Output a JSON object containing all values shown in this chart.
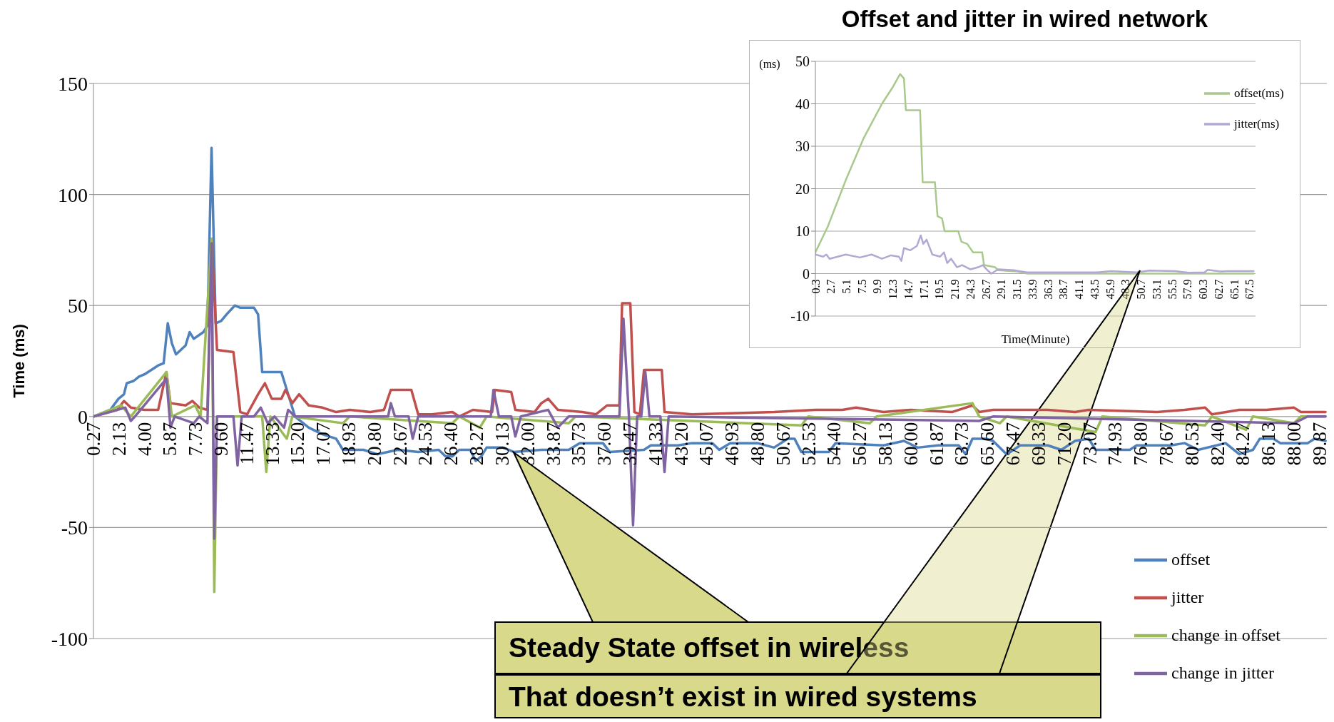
{
  "chart_data": [
    {
      "type": "line",
      "ylabel": "Time (ms)",
      "ylim": [
        -100,
        150
      ],
      "yticks": [
        -100,
        -50,
        0,
        50,
        100,
        150
      ],
      "xlim": [
        0.27,
        90.4
      ],
      "xticks": [
        0.27,
        2.13,
        {
          "value": 4,
          "label": "4.00"
        },
        5.87,
        7.73,
        {
          "value": 9.6,
          "label": "9.60"
        },
        11.47,
        13.33,
        {
          "value": 15.2,
          "label": "15.20"
        },
        17.07,
        18.93,
        {
          "value": 20.8,
          "label": "20.80"
        },
        22.67,
        24.53,
        {
          "value": 26.4,
          "label": "26.40"
        },
        28.27,
        30.13,
        {
          "value": 32,
          "label": "32.00"
        },
        33.87,
        35.73,
        {
          "value": 37.6,
          "label": "37.60"
        },
        39.47,
        41.33,
        {
          "value": 43.2,
          "label": "43.20"
        },
        45.07,
        46.93,
        {
          "value": 48.8,
          "label": "48.80"
        },
        50.67,
        52.53,
        {
          "value": 54.4,
          "label": "54.40"
        },
        56.27,
        58.13,
        {
          "value": 60,
          "label": "60.00"
        },
        61.87,
        63.73,
        {
          "value": 65.6,
          "label": "65.60"
        },
        67.47,
        69.33,
        {
          "value": 71.2,
          "label": "71.20"
        },
        73.07,
        74.93,
        {
          "value": 76.8,
          "label": "76.80"
        },
        78.67,
        80.53,
        {
          "value": 82.4,
          "label": "82.40"
        },
        84.27,
        86.13,
        {
          "value": 88,
          "label": "88.00"
        },
        89.87
      ],
      "grid": "y",
      "legend": "bottom right",
      "annotations": [
        "Steady State offset in wireless",
        "That doesn’t exist in wired systems"
      ],
      "series": [
        {
          "name": "offset",
          "color": "#4f81bd",
          "x": [
            0.27,
            1.5,
            2.1,
            2.5,
            2.7,
            3.2,
            3.6,
            4.0,
            4.5,
            5.0,
            5.4,
            5.7,
            6.0,
            6.3,
            7.0,
            7.3,
            7.6,
            8.3,
            8.6,
            8.9,
            9.2,
            9.6,
            10.0,
            10.6,
            11.0,
            12.0,
            12.3,
            12.6,
            14.0,
            14.5,
            15.0,
            16.0,
            17.0,
            18.0,
            18.5,
            20.0,
            21.0,
            22.5,
            24.0,
            25.5,
            26.0,
            26.5,
            27.0,
            27.8,
            28.2,
            28.6,
            29.0,
            30.2,
            31.0,
            33.0,
            35.0,
            35.8,
            37.5,
            38.0,
            40.5,
            41.0,
            43.0,
            44.0,
            45.5,
            46.0,
            46.8,
            48.8,
            50.0,
            51.0,
            51.5,
            52.0,
            54.0,
            54.5,
            58.0,
            59.5,
            60.5,
            62.0,
            63.5,
            64.0,
            64.5,
            65.5,
            66.0,
            67.0,
            68.0,
            70.0,
            71.0,
            72.0,
            73.0,
            73.5,
            76.0,
            76.5,
            79.0,
            80.0,
            81.0,
            83.0,
            84.0,
            85.0,
            85.5,
            86.5,
            87.0,
            89.0,
            89.5,
            90.3
          ],
          "values": [
            0,
            3,
            8,
            10,
            15,
            16,
            18,
            19,
            21,
            23,
            24,
            42,
            33,
            28,
            32,
            38,
            35,
            38,
            41,
            121,
            42,
            43,
            46,
            50,
            49,
            49,
            46,
            20,
            20,
            10,
            0,
            -5,
            -8,
            -10,
            -15,
            -15,
            -17,
            -15,
            -16,
            -15,
            -18,
            -18,
            -15,
            -15,
            -20,
            -18,
            -14,
            -14,
            -16,
            -15,
            -15,
            -12,
            -12,
            -16,
            -15,
            -13,
            -13,
            -12,
            -12,
            -15,
            -12,
            -12,
            -14,
            -10,
            -10,
            -16,
            -16,
            -12,
            -13,
            -11,
            -14,
            -13,
            -13,
            -17,
            -10,
            -10,
            -11,
            -17,
            -13,
            -13,
            -15,
            -11,
            -10,
            -15,
            -15,
            -13,
            -13,
            -12,
            -15,
            -12,
            -17,
            -15,
            -10,
            -10,
            -12,
            -12,
            -10,
            -11
          ]
        },
        {
          "name": "jitter",
          "color": "#c0504d",
          "x": [
            0.27,
            2.0,
            2.5,
            3.0,
            4.0,
            5.0,
            5.6,
            5.9,
            7.0,
            7.5,
            8.0,
            8.6,
            8.9,
            9.3,
            10.5,
            11.0,
            11.5,
            12.3,
            12.8,
            13.3,
            14.0,
            14.3,
            14.8,
            15.3,
            16.0,
            17.0,
            18.0,
            19.0,
            20.5,
            21.5,
            22.0,
            23.5,
            24.0,
            25.0,
            26.5,
            27.0,
            28.0,
            29.4,
            29.6,
            30.8,
            31.1,
            32.5,
            33.0,
            33.5,
            34.2,
            36.0,
            37.0,
            37.8,
            38.7,
            38.9,
            39.5,
            39.8,
            40.2,
            40.5,
            41.8,
            42.0,
            44.0,
            50.0,
            53.0,
            55.0,
            56.0,
            57.0,
            58.0,
            60.0,
            63.0,
            64.5,
            65.0,
            66.0,
            70.0,
            72.0,
            73.0,
            78.0,
            80.0,
            81.5,
            82.0,
            84.0,
            86.0,
            88.0,
            88.5,
            90.3
          ],
          "values": [
            0,
            3,
            7,
            4,
            3,
            3,
            20,
            6,
            5,
            7,
            4,
            3,
            80,
            30,
            29,
            2,
            1,
            10,
            15,
            8,
            8,
            12,
            6,
            10,
            5,
            4,
            2,
            3,
            2,
            3,
            12,
            12,
            1,
            1,
            2,
            0,
            3,
            2,
            12,
            11,
            3,
            2,
            6,
            8,
            3,
            2,
            1,
            5,
            5,
            51,
            51,
            2,
            1,
            21,
            21,
            2,
            1,
            2,
            3,
            3,
            4,
            3,
            2,
            3,
            2,
            5,
            2,
            3,
            3,
            2,
            3,
            2,
            3,
            4,
            1,
            3,
            3,
            4,
            2,
            2
          ]
        },
        {
          "name": "change in offset",
          "color": "#9bbb59",
          "x": [
            0.27,
            2.3,
            3.0,
            5.6,
            6.0,
            7.7,
            8.1,
            8.9,
            9.1,
            9.3,
            12.6,
            12.9,
            13.2,
            14.4,
            14.8,
            18.5,
            19.0,
            26.5,
            27.0,
            28.5,
            29.0,
            35.0,
            35.5,
            52.0,
            52.5,
            57.0,
            57.5,
            64.5,
            65.0,
            66.5,
            67.0,
            73.5,
            74.0,
            81.5,
            82.0,
            84.5,
            85.0,
            88.0,
            88.5,
            90.3
          ],
          "values": [
            0,
            5,
            0,
            20,
            0,
            5,
            0,
            80,
            -79,
            0,
            0,
            -25,
            0,
            -10,
            0,
            -3,
            0,
            -3,
            0,
            -5,
            0,
            -3,
            0,
            -4,
            0,
            -3,
            0,
            6,
            0,
            -3,
            0,
            -7,
            0,
            -4,
            0,
            -6,
            0,
            -3,
            0,
            0
          ]
        },
        {
          "name": "change in jitter",
          "color": "#8064a2",
          "x": [
            0.27,
            2.6,
            3.0,
            3.3,
            5.6,
            5.9,
            6.2,
            7.6,
            8.0,
            8.6,
            8.9,
            9.1,
            9.3,
            10.5,
            10.8,
            11.1,
            12.0,
            12.5,
            13.0,
            13.5,
            14.2,
            14.5,
            15.0,
            21.8,
            22.0,
            22.3,
            23.3,
            23.6,
            24.0,
            29.3,
            29.5,
            29.9,
            30.8,
            31.1,
            31.5,
            33.5,
            34.2,
            35.0,
            38.7,
            39.0,
            39.4,
            39.7,
            40.0,
            40.3,
            40.6,
            40.9,
            41.7,
            42.0,
            42.3,
            65.0,
            66.0,
            88.0,
            89.0,
            90.3
          ],
          "values": [
            0,
            4,
            -2,
            0,
            17,
            -5,
            0,
            -3,
            0,
            -3,
            78,
            -55,
            0,
            0,
            -22,
            0,
            0,
            4,
            -3,
            0,
            -5,
            3,
            0,
            0,
            6,
            0,
            0,
            -10,
            0,
            0,
            12,
            0,
            0,
            -9,
            0,
            3,
            -5,
            0,
            0,
            44,
            0,
            -49,
            0,
            0,
            20,
            0,
            0,
            -25,
            0,
            -2,
            0,
            -3,
            0,
            0
          ]
        }
      ]
    },
    {
      "type": "line",
      "title": "Offset and jitter in wired network",
      "ylabel": "(ms)",
      "xlabel": "Time(Minute)",
      "ylim": [
        -10,
        50
      ],
      "yticks": [
        -10,
        0,
        10,
        20,
        30,
        40,
        50
      ],
      "xlim": [
        0.3,
        68.4
      ],
      "xticks": [
        0.3,
        2.7,
        5.1,
        7.5,
        9.9,
        12.3,
        14.7,
        17.1,
        19.5,
        21.9,
        24.3,
        26.7,
        29.1,
        31.5,
        33.9,
        36.3,
        38.7,
        41.1,
        43.5,
        45.9,
        48.3,
        50.7,
        53.1,
        55.5,
        57.9,
        60.3,
        62.7,
        65.1,
        67.5
      ],
      "grid": "y",
      "legend": "top right",
      "series": [
        {
          "name": "offset(ms)",
          "color": "#a9c98c",
          "x": [
            0.3,
            2.2,
            5.0,
            7.8,
            10.6,
            12.3,
            13.4,
            14.0,
            14.3,
            16.5,
            16.9,
            18.8,
            19.2,
            19.9,
            20.3,
            22.4,
            22.9,
            23.8,
            24.7,
            26.1,
            26.4,
            28.1,
            28.6,
            31.5,
            33.1,
            68.1
          ],
          "values": [
            5,
            11,
            22,
            32,
            40,
            44,
            47,
            46,
            38.5,
            38.5,
            21.5,
            21.5,
            13.5,
            13,
            10,
            10,
            7.5,
            7,
            5,
            5,
            2,
            1.5,
            0.8,
            0.5,
            0,
            0
          ]
        },
        {
          "name": "jitter(ms)",
          "color": "#b3a8d3",
          "x": [
            0.3,
            1.5,
            2.0,
            2.5,
            5.0,
            7.2,
            9.0,
            10.6,
            12.0,
            13.2,
            13.6,
            14.0,
            15.0,
            16.0,
            16.6,
            17.0,
            17.5,
            18.4,
            19.6,
            20.2,
            20.7,
            21.3,
            22.2,
            23.0,
            24.3,
            25.5,
            26.2,
            26.8,
            27.5,
            28.6,
            31.0,
            33.0,
            44.0,
            46.0,
            50.0,
            52.0,
            56.0,
            58.0,
            60.5,
            61.0,
            63.0,
            64.0,
            68.1
          ],
          "values": [
            4.5,
            4,
            4.5,
            3.5,
            4.5,
            3.8,
            4.5,
            3.5,
            4.3,
            4,
            3,
            6,
            5.5,
            6.5,
            9,
            7,
            8,
            4.5,
            4,
            5,
            2.5,
            3.5,
            1.5,
            2,
            1,
            1.5,
            2,
            1,
            0,
            1,
            0.8,
            0.3,
            0.3,
            0.6,
            0.3,
            0.7,
            0.6,
            0.2,
            0.3,
            0.9,
            0.5,
            0.6,
            0.6
          ]
        }
      ]
    }
  ]
}
